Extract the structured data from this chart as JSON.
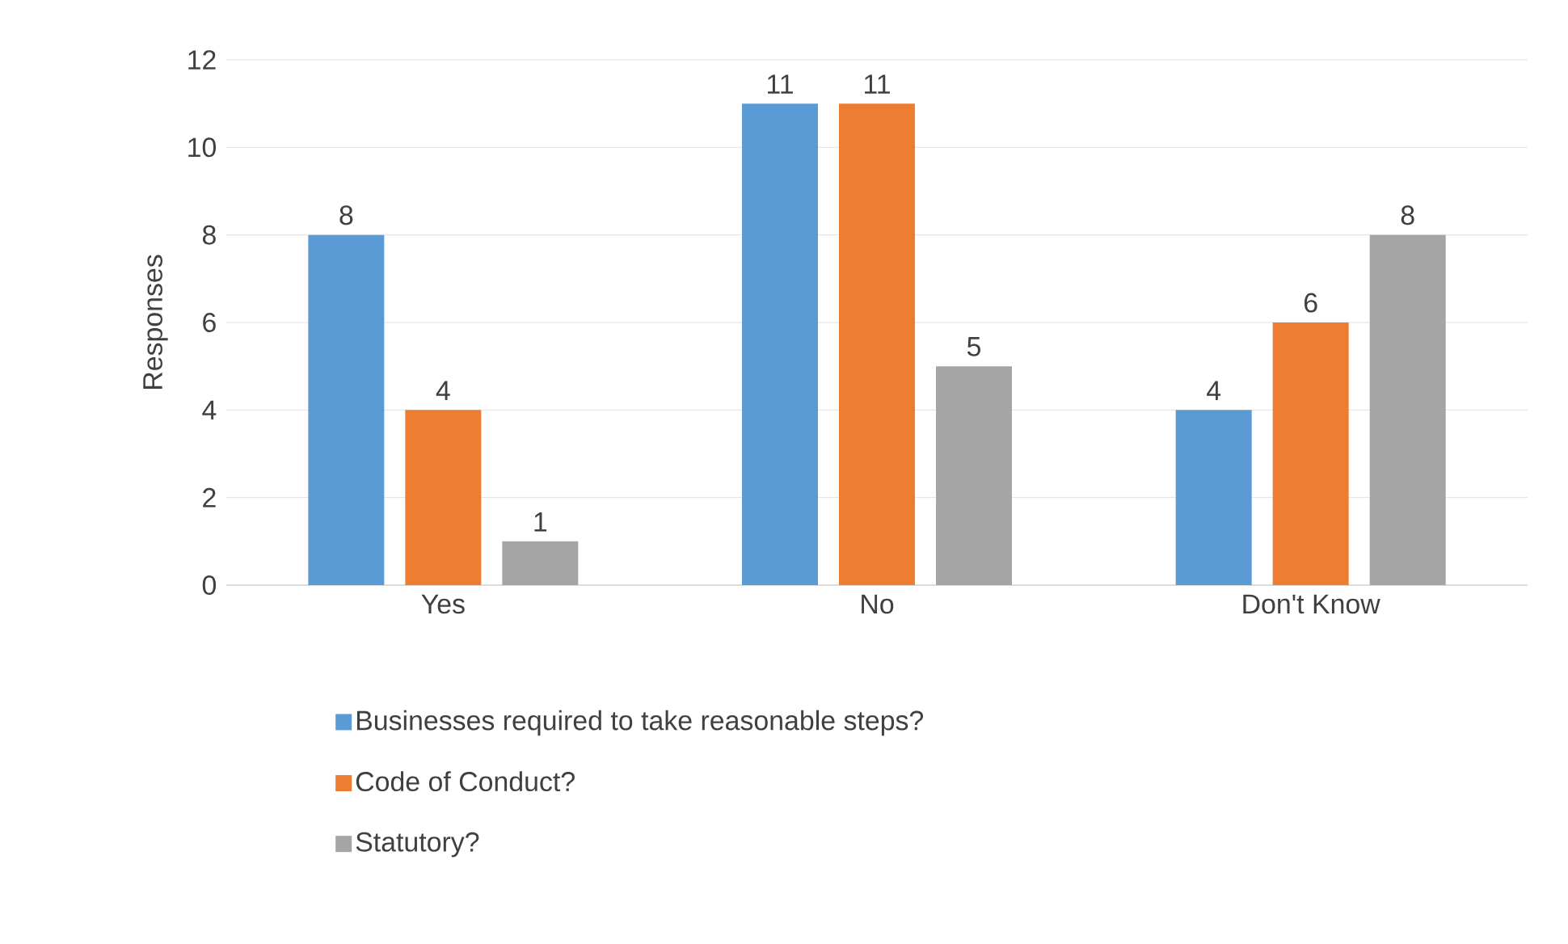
{
  "chart_data": {
    "type": "bar",
    "categories": [
      "Yes",
      "No",
      "Don't Know"
    ],
    "ylabel": "Responses",
    "series": [
      {
        "name": "Businesses required to take reasonable steps?",
        "color": "#5b9bd5",
        "values": [
          8,
          11,
          4
        ]
      },
      {
        "name": "Code of Conduct?",
        "color": "#ed7d31",
        "values": [
          4,
          11,
          6
        ]
      },
      {
        "name": "Statutory?",
        "color": "#a5a5a5",
        "values": [
          1,
          5,
          8
        ]
      }
    ],
    "ylim": [
      0,
      12
    ],
    "yticks": [
      0,
      2,
      4,
      6,
      8,
      10,
      12
    ],
    "grid": "y",
    "legend": "bottom",
    "data_labels": true
  }
}
